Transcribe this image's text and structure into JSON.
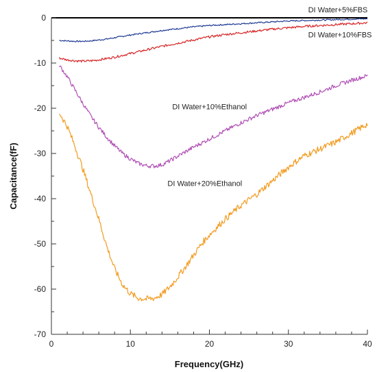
{
  "chart_data": {
    "type": "line",
    "title": "",
    "xlabel": "Frequency(GHz)",
    "ylabel": "Capacitance(fF)",
    "xlim": [
      0,
      40
    ],
    "ylim": [
      -70,
      0
    ],
    "xticks": [
      0,
      10,
      20,
      30,
      40
    ],
    "yticks": [
      0,
      -10,
      -20,
      -30,
      -40,
      -50,
      -60,
      -70
    ],
    "grid": false,
    "series": [
      {
        "name": "DI Water+5%FBS",
        "color": "#1f3a93",
        "x": [
          1,
          2,
          3,
          4,
          5,
          6,
          7,
          8,
          9,
          10,
          12,
          14,
          16,
          18,
          20,
          22,
          24,
          26,
          28,
          30,
          32,
          34,
          36,
          38,
          40
        ],
        "y": [
          -5.0,
          -5.1,
          -5.2,
          -5.2,
          -5.1,
          -4.9,
          -4.7,
          -4.4,
          -4.1,
          -3.8,
          -3.3,
          -2.8,
          -2.4,
          -2.0,
          -1.7,
          -1.5,
          -1.3,
          -1.1,
          -0.9,
          -0.7,
          -0.6,
          -0.5,
          -0.4,
          -0.3,
          -0.2
        ]
      },
      {
        "name": "DI Water+10%FBS",
        "color": "#d62728",
        "x": [
          1,
          2,
          3,
          4,
          5,
          6,
          7,
          8,
          9,
          10,
          12,
          14,
          16,
          18,
          20,
          22,
          24,
          26,
          28,
          30,
          32,
          34,
          36,
          38,
          40
        ],
        "y": [
          -8.9,
          -9.3,
          -9.5,
          -9.6,
          -9.5,
          -9.3,
          -9.0,
          -8.7,
          -8.3,
          -7.9,
          -7.1,
          -6.3,
          -5.6,
          -4.9,
          -4.2,
          -3.7,
          -3.3,
          -2.9,
          -2.5,
          -2.2,
          -1.9,
          -1.7,
          -1.5,
          -1.3,
          -1.1
        ]
      },
      {
        "name": "DI Water+10%Ethanol",
        "color": "#b04fb5",
        "x": [
          1,
          2,
          3,
          4,
          5,
          6,
          7,
          8,
          9,
          10,
          11,
          12,
          13,
          14,
          15,
          16,
          17,
          18,
          19,
          20,
          22,
          24,
          26,
          28,
          30,
          32,
          34,
          36,
          38,
          40
        ],
        "y": [
          -10.5,
          -13.0,
          -16.0,
          -19.0,
          -21.8,
          -24.2,
          -26.4,
          -28.3,
          -30.0,
          -31.2,
          -32.2,
          -32.7,
          -32.8,
          -32.5,
          -31.6,
          -30.6,
          -29.6,
          -28.6,
          -27.7,
          -26.8,
          -25.0,
          -23.2,
          -21.6,
          -20.2,
          -18.8,
          -17.6,
          -16.4,
          -15.0,
          -13.8,
          -12.8
        ]
      },
      {
        "name": "DI Water+20%Ethanol",
        "color": "#f39a1e",
        "x": [
          1,
          2,
          3,
          4,
          5,
          6,
          7,
          8,
          9,
          10,
          11,
          12,
          13,
          14,
          15,
          16,
          17,
          18,
          19,
          20,
          22,
          24,
          26,
          28,
          30,
          32,
          34,
          36,
          38,
          40
        ],
        "y": [
          -21.0,
          -24.0,
          -28.5,
          -33.5,
          -39.0,
          -44.5,
          -50.5,
          -55.5,
          -59.0,
          -61.0,
          -62.0,
          -62.2,
          -62.0,
          -61.2,
          -59.5,
          -57.3,
          -55.0,
          -52.5,
          -50.0,
          -48.0,
          -44.5,
          -41.5,
          -39.0,
          -36.0,
          -33.0,
          -30.5,
          -29.0,
          -27.5,
          -25.5,
          -23.5
        ]
      }
    ],
    "annotations": [
      {
        "text": "DI Water+5%FBS",
        "x": 32.5,
        "y": 1.2
      },
      {
        "text": "DI Water+10%FBS",
        "x": 32.5,
        "y": -4.3
      },
      {
        "text": "DI Water+10%Ethanol",
        "x": 15.3,
        "y": -20.2
      },
      {
        "text": "DI Water+20%Ethanol",
        "x": 14.7,
        "y": -37.2
      }
    ]
  }
}
